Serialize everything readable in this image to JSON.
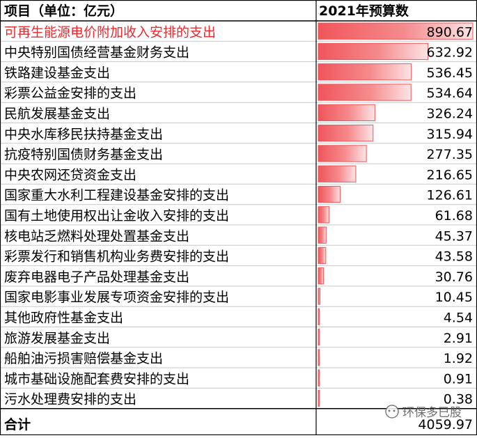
{
  "chart_data": {
    "type": "table",
    "header": {
      "item_label": "项目（单位：亿元）",
      "value_label": "2021年预算数"
    },
    "rows": [
      {
        "item": "可再生能源电价附加收入安排的支出",
        "value": 890.67,
        "text": "890.67",
        "highlight": true
      },
      {
        "item": "中央特别国债经营基金财务支出",
        "value": 632.92,
        "text": "632.92"
      },
      {
        "item": "铁路建设基金支出",
        "value": 536.45,
        "text": "536.45"
      },
      {
        "item": "彩票公益金安排的支出",
        "value": 534.64,
        "text": "534.64"
      },
      {
        "item": "民航发展基金支出",
        "value": 326.24,
        "text": "326.24"
      },
      {
        "item": "中央水库移民扶持基金支出",
        "value": 315.94,
        "text": "315.94"
      },
      {
        "item": "抗疫特别国债财务基金支出",
        "value": 277.35,
        "text": "277.35"
      },
      {
        "item": "中央农网还贷资金支出",
        "value": 216.65,
        "text": "216.65"
      },
      {
        "item": "国家重大水利工程建设基金安排的支出",
        "value": 126.61,
        "text": "126.61"
      },
      {
        "item": "国有土地使用权出让金收入安排的支出",
        "value": 61.68,
        "text": "61.68"
      },
      {
        "item": "核电站乏燃料处理处置基金支出",
        "value": 45.37,
        "text": "45.37"
      },
      {
        "item": "彩票发行和销售机构业务费安排的支出",
        "value": 43.58,
        "text": "43.58"
      },
      {
        "item": "废弃电器电子产品处理基金支出",
        "value": 30.76,
        "text": "30.76"
      },
      {
        "item": "国家电影事业发展专项资金安排的支出",
        "value": 10.45,
        "text": "10.45"
      },
      {
        "item": "其他政府性基金支出",
        "value": 4.54,
        "text": "4.54"
      },
      {
        "item": "旅游发展基金支出",
        "value": 2.91,
        "text": "2.91"
      },
      {
        "item": "船舶油污损害赔偿基金支出",
        "value": 1.92,
        "text": "1.92"
      },
      {
        "item": "城市基础设施配套费安排的支出",
        "value": 0.91,
        "text": "0.91"
      },
      {
        "item": "污水处理费安排的支出",
        "value": 0.38,
        "text": "0.38"
      }
    ],
    "total": {
      "item": "合计",
      "value": 4059.97,
      "text": "4059.97"
    },
    "bar_max": 890.67,
    "bar_color": "#f0555a",
    "highlight_color": "#f0282d",
    "watermark": "环保多已股"
  }
}
